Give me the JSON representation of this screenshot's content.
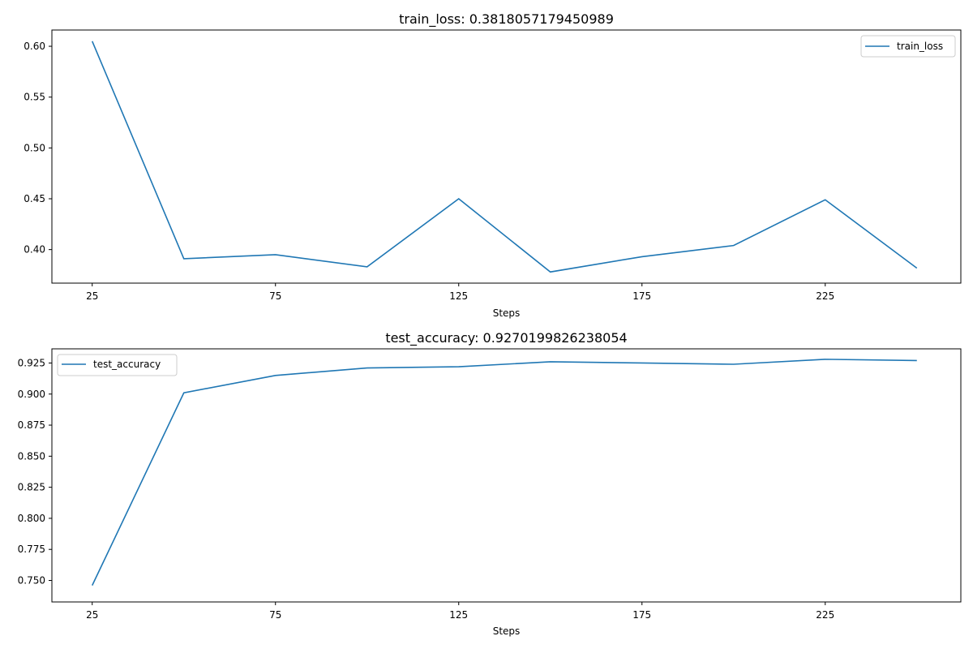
{
  "chart_data": [
    {
      "type": "line",
      "title": "train_loss: 0.3818057179450989",
      "xlabel": "Steps",
      "ylabel": "",
      "x": [
        25,
        50,
        75,
        100,
        125,
        150,
        175,
        200,
        225,
        250
      ],
      "series": [
        {
          "name": "train_loss",
          "values": [
            0.605,
            0.391,
            0.395,
            0.383,
            0.45,
            0.378,
            0.393,
            0.404,
            0.449,
            0.3818
          ],
          "color": "#1f77b4"
        }
      ],
      "xlim": [
        14,
        262
      ],
      "ylim": [
        0.367,
        0.616
      ],
      "xticks": [
        25,
        75,
        125,
        175,
        225
      ],
      "yticks": [
        0.4,
        0.45,
        0.5,
        0.55,
        0.6
      ],
      "ytick_labels": [
        "0.40",
        "0.45",
        "0.50",
        "0.55",
        "0.60"
      ],
      "legend_position": "upper right",
      "grid": false
    },
    {
      "type": "line",
      "title": "test_accuracy: 0.9270199826238054",
      "xlabel": "Steps",
      "ylabel": "",
      "x": [
        25,
        50,
        75,
        100,
        125,
        150,
        175,
        200,
        225,
        250
      ],
      "series": [
        {
          "name": "test_accuracy",
          "values": [
            0.746,
            0.901,
            0.915,
            0.921,
            0.922,
            0.926,
            0.925,
            0.924,
            0.928,
            0.927
          ],
          "color": "#1f77b4"
        }
      ],
      "xlim": [
        14,
        262
      ],
      "ylim": [
        0.7327,
        0.9364
      ],
      "xticks": [
        25,
        75,
        125,
        175,
        225
      ],
      "yticks": [
        0.75,
        0.775,
        0.8,
        0.825,
        0.85,
        0.875,
        0.9,
        0.925
      ],
      "ytick_labels": [
        "0.750",
        "0.775",
        "0.800",
        "0.825",
        "0.850",
        "0.875",
        "0.900",
        "0.925"
      ],
      "legend_position": "upper left",
      "grid": false
    }
  ]
}
